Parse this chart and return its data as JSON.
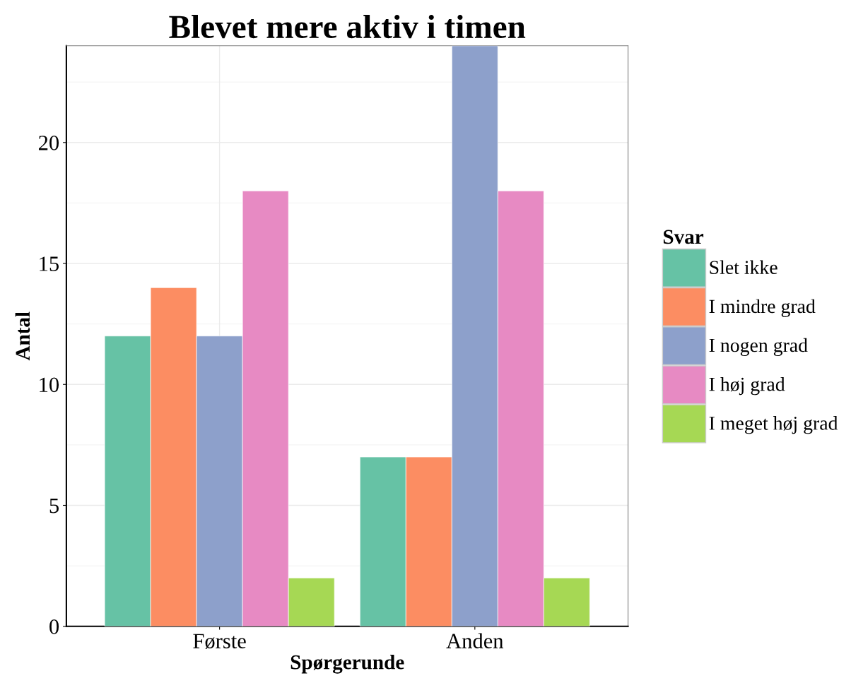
{
  "chart_data": {
    "type": "bar",
    "title": "Blevet mere aktiv i timen",
    "xlabel": "Spørgerunde",
    "ylabel": "Antal",
    "legend_title": "Svar",
    "categories": [
      "Første",
      "Anden"
    ],
    "series": [
      {
        "name": "Slet ikke",
        "color": "#66c2a5",
        "values": [
          12,
          7
        ]
      },
      {
        "name": "I mindre grad",
        "color": "#fc8d62",
        "values": [
          14,
          7
        ]
      },
      {
        "name": "I nogen grad",
        "color": "#8da0cb",
        "values": [
          12,
          24
        ]
      },
      {
        "name": "I høj grad",
        "color": "#e78ac3",
        "values": [
          18,
          18
        ]
      },
      {
        "name": "I meget høj grad",
        "color": "#a6d854",
        "values": [
          2,
          2
        ]
      }
    ],
    "ylim": [
      0,
      24
    ],
    "yticks": [
      0,
      5,
      10,
      15,
      20
    ],
    "grid": true,
    "legend": "right"
  }
}
